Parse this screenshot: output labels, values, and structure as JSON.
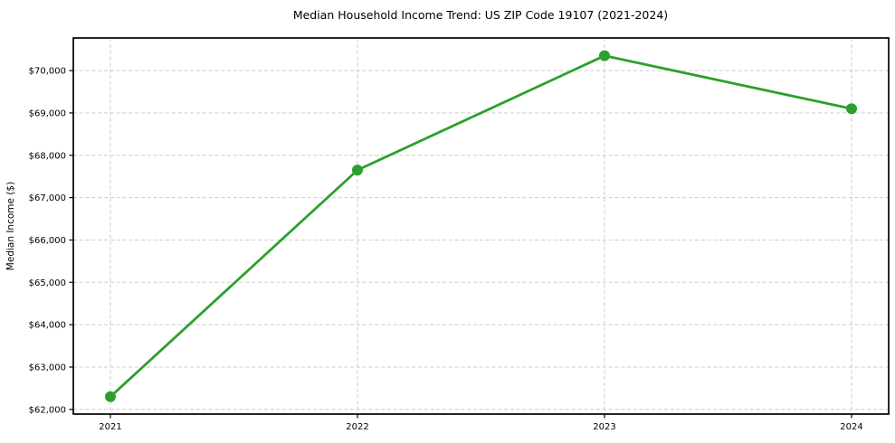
{
  "figure": {
    "background": "#ffffff",
    "title": "Median Household Income Trend: US ZIP Code 19107 (2021-2024)"
  },
  "chart_data": {
    "type": "line",
    "title": "Median Household Income Trend: US ZIP Code 19107 (2021-2024)",
    "xlabel": "",
    "ylabel": "Median Income ($)",
    "categories": [
      "2021",
      "2022",
      "2023",
      "2024"
    ],
    "series": [
      {
        "values": [
          62300,
          67650,
          70350,
          69100
        ],
        "color": "#2ca02c",
        "marker": "circle",
        "marker_radius": 6,
        "line_width": 2.8
      }
    ],
    "yticks": [
      62000,
      63000,
      64000,
      65000,
      66000,
      67000,
      68000,
      69000,
      70000
    ],
    "ytick_labels": [
      "$62,000",
      "$63,000",
      "$64,000",
      "$65,000",
      "$66,000",
      "$67,000",
      "$68,000",
      "$69,000",
      "$70,000"
    ],
    "ylim": [
      61890,
      70770
    ],
    "grid": true,
    "grid_style": "dashed",
    "grid_color": "#cdcdcd",
    "axis_color": "#000000",
    "text_color": "#000000",
    "legend": "none"
  }
}
